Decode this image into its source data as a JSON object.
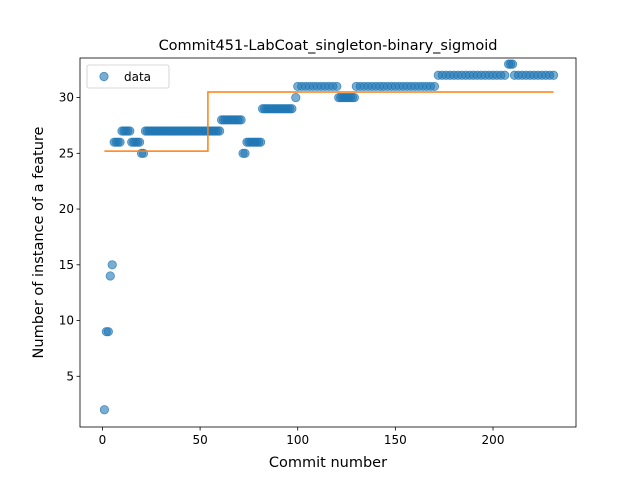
{
  "chart_data": {
    "type": "scatter",
    "title": "Commit451-LabCoat_singleton-binary_sigmoid",
    "xlabel": "Commit number",
    "ylabel": "Number of instance of a feature",
    "xlim": [
      -11.5,
      242.5
    ],
    "ylim": [
      0.45,
      33.55
    ],
    "xticks": [
      0,
      50,
      100,
      150,
      200
    ],
    "yticks": [
      5,
      10,
      15,
      20,
      25,
      30
    ],
    "grid": false,
    "legend": {
      "position": "top-left",
      "entries": [
        "data"
      ]
    },
    "series": [
      {
        "name": "data",
        "kind": "scatter",
        "color": "#1f77b4",
        "opacity": 0.6,
        "points": [
          [
            1,
            2
          ],
          [
            2,
            9
          ],
          [
            3,
            9
          ],
          [
            4,
            14
          ],
          [
            5,
            15
          ],
          [
            6,
            26
          ],
          [
            7,
            26
          ],
          [
            8,
            26
          ],
          [
            9,
            26
          ],
          [
            10,
            27
          ],
          [
            11,
            27
          ],
          [
            12,
            27
          ],
          [
            13,
            27
          ],
          [
            14,
            27
          ],
          [
            15,
            26
          ],
          [
            16,
            26
          ],
          [
            17,
            26
          ],
          [
            18,
            26
          ],
          [
            19,
            26
          ],
          [
            20,
            25
          ],
          [
            21,
            25
          ],
          [
            22,
            27
          ],
          [
            23,
            27
          ],
          [
            24,
            27
          ],
          [
            25,
            27
          ],
          [
            26,
            27
          ],
          [
            27,
            27
          ],
          [
            28,
            27
          ],
          [
            29,
            27
          ],
          [
            30,
            27
          ],
          [
            31,
            27
          ],
          [
            32,
            27
          ],
          [
            33,
            27
          ],
          [
            34,
            27
          ],
          [
            35,
            27
          ],
          [
            36,
            27
          ],
          [
            37,
            27
          ],
          [
            38,
            27
          ],
          [
            39,
            27
          ],
          [
            40,
            27
          ],
          [
            41,
            27
          ],
          [
            42,
            27
          ],
          [
            43,
            27
          ],
          [
            44,
            27
          ],
          [
            45,
            27
          ],
          [
            46,
            27
          ],
          [
            47,
            27
          ],
          [
            48,
            27
          ],
          [
            49,
            27
          ],
          [
            50,
            27
          ],
          [
            51,
            27
          ],
          [
            52,
            27
          ],
          [
            53,
            27
          ],
          [
            54,
            27
          ],
          [
            55,
            27
          ],
          [
            56,
            27
          ],
          [
            57,
            27
          ],
          [
            58,
            27
          ],
          [
            59,
            27
          ],
          [
            60,
            27
          ],
          [
            61,
            28
          ],
          [
            62,
            28
          ],
          [
            63,
            28
          ],
          [
            64,
            28
          ],
          [
            65,
            28
          ],
          [
            66,
            28
          ],
          [
            67,
            28
          ],
          [
            68,
            28
          ],
          [
            69,
            28
          ],
          [
            70,
            28
          ],
          [
            71,
            28
          ],
          [
            72,
            25
          ],
          [
            73,
            25
          ],
          [
            74,
            26
          ],
          [
            75,
            26
          ],
          [
            76,
            26
          ],
          [
            77,
            26
          ],
          [
            78,
            26
          ],
          [
            79,
            26
          ],
          [
            80,
            26
          ],
          [
            81,
            26
          ],
          [
            82,
            29
          ],
          [
            83,
            29
          ],
          [
            84,
            29
          ],
          [
            85,
            29
          ],
          [
            86,
            29
          ],
          [
            87,
            29
          ],
          [
            88,
            29
          ],
          [
            89,
            29
          ],
          [
            90,
            29
          ],
          [
            91,
            29
          ],
          [
            92,
            29
          ],
          [
            93,
            29
          ],
          [
            94,
            29
          ],
          [
            95,
            29
          ],
          [
            96,
            29
          ],
          [
            97,
            29
          ],
          [
            99,
            30
          ],
          [
            100,
            31
          ],
          [
            102,
            31
          ],
          [
            104,
            31
          ],
          [
            106,
            31
          ],
          [
            108,
            31
          ],
          [
            110,
            31
          ],
          [
            112,
            31
          ],
          [
            114,
            31
          ],
          [
            116,
            31
          ],
          [
            118,
            31
          ],
          [
            120,
            31
          ],
          [
            121,
            30
          ],
          [
            122,
            30
          ],
          [
            123,
            30
          ],
          [
            124,
            30
          ],
          [
            125,
            30
          ],
          [
            126,
            30
          ],
          [
            127,
            30
          ],
          [
            128,
            30
          ],
          [
            129,
            30
          ],
          [
            130,
            31
          ],
          [
            132,
            31
          ],
          [
            134,
            31
          ],
          [
            136,
            31
          ],
          [
            138,
            31
          ],
          [
            140,
            31
          ],
          [
            142,
            31
          ],
          [
            144,
            31
          ],
          [
            146,
            31
          ],
          [
            148,
            31
          ],
          [
            150,
            31
          ],
          [
            152,
            31
          ],
          [
            154,
            31
          ],
          [
            156,
            31
          ],
          [
            158,
            31
          ],
          [
            160,
            31
          ],
          [
            162,
            31
          ],
          [
            164,
            31
          ],
          [
            166,
            31
          ],
          [
            168,
            31
          ],
          [
            170,
            31
          ],
          [
            172,
            32
          ],
          [
            174,
            32
          ],
          [
            176,
            32
          ],
          [
            178,
            32
          ],
          [
            180,
            32
          ],
          [
            182,
            32
          ],
          [
            184,
            32
          ],
          [
            186,
            32
          ],
          [
            188,
            32
          ],
          [
            190,
            32
          ],
          [
            192,
            32
          ],
          [
            194,
            32
          ],
          [
            196,
            32
          ],
          [
            198,
            32
          ],
          [
            200,
            32
          ],
          [
            202,
            32
          ],
          [
            204,
            32
          ],
          [
            206,
            32
          ],
          [
            208,
            33
          ],
          [
            209,
            33
          ],
          [
            210,
            33
          ],
          [
            211,
            32
          ],
          [
            213,
            32
          ],
          [
            215,
            32
          ],
          [
            217,
            32
          ],
          [
            219,
            32
          ],
          [
            221,
            32
          ],
          [
            223,
            32
          ],
          [
            225,
            32
          ],
          [
            227,
            32
          ],
          [
            229,
            32
          ],
          [
            231,
            32
          ]
        ]
      },
      {
        "name": "",
        "kind": "step-line",
        "color": "#ff7f0e",
        "points": [
          [
            1,
            25.2
          ],
          [
            54,
            25.2
          ],
          [
            54,
            30.5
          ],
          [
            231,
            30.5
          ]
        ]
      }
    ]
  }
}
